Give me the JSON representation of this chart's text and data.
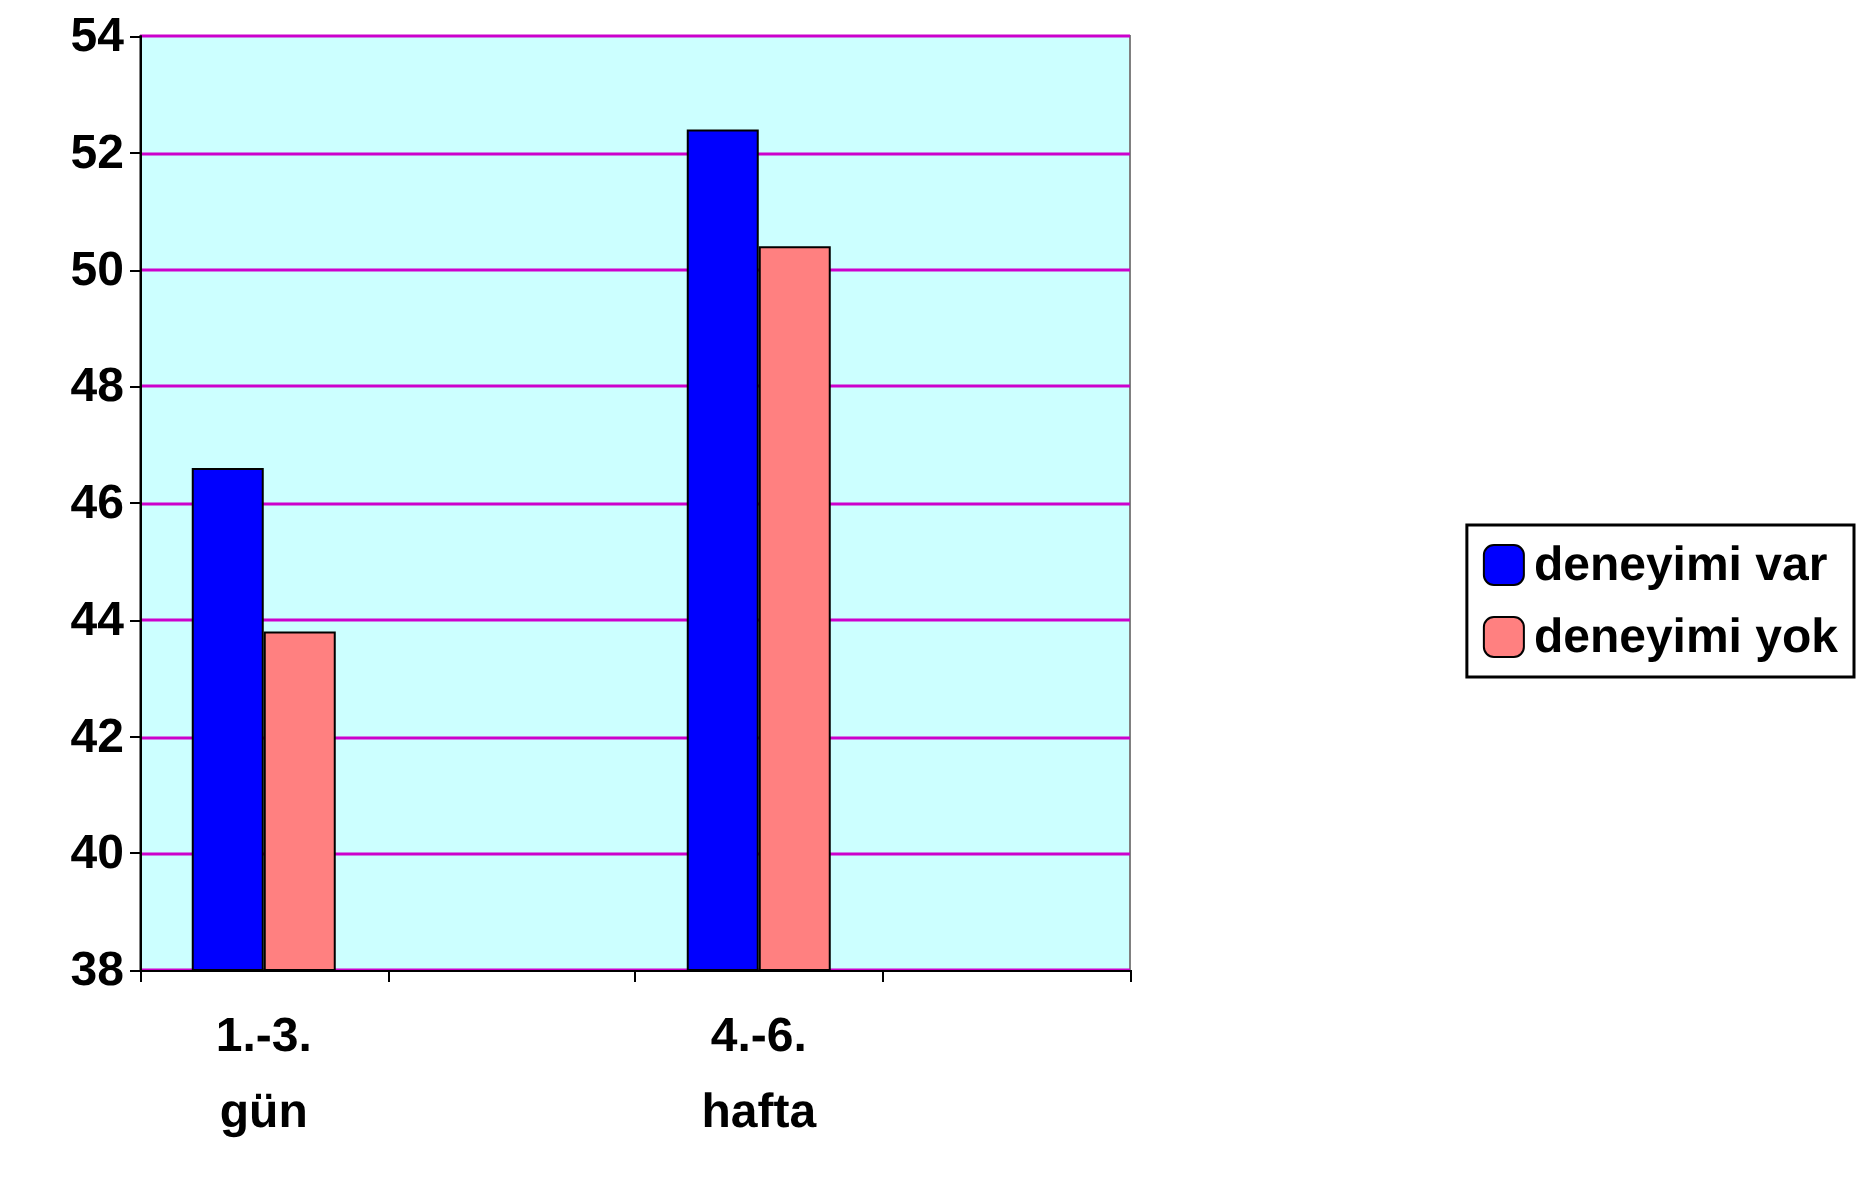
{
  "chart_data": {
    "type": "bar",
    "categories": [
      "1.-3.\ngün",
      null,
      "4.-6.\nhafta",
      null
    ],
    "series": [
      {
        "name": "deneyimi var",
        "color": "#0000ff",
        "values": [
          46.6,
          null,
          52.4,
          null
        ]
      },
      {
        "name": "deneyimi yok",
        "color": "#ff8080",
        "values": [
          43.8,
          null,
          50.4,
          null
        ]
      }
    ],
    "ylim": [
      38,
      54
    ],
    "yticks": [
      38,
      40,
      42,
      44,
      46,
      48,
      50,
      52,
      54
    ],
    "grid": "y",
    "legend": "right"
  }
}
